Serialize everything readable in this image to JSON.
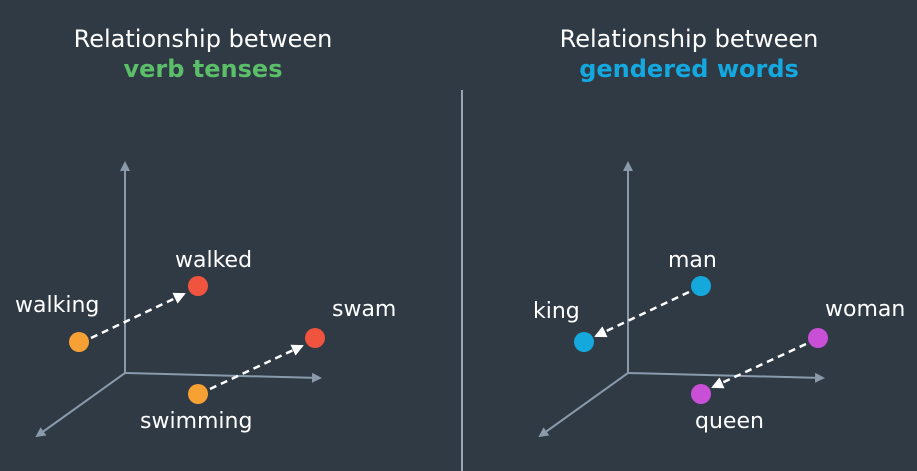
{
  "left_panel": {
    "title_line1": "Relationship between",
    "title_line2": "verb tenses",
    "accent_color": "#5bbf6a",
    "words": {
      "walking": "walking",
      "walked": "walked",
      "swimming": "swimming",
      "swam": "swam"
    }
  },
  "right_panel": {
    "title_line1": "Relationship between",
    "title_line2": "gendered words",
    "accent_color": "#13a9e0",
    "words": {
      "man": "man",
      "king": "king",
      "woman": "woman",
      "queen": "queen"
    }
  },
  "colors": {
    "background": "#2f3a45",
    "axis": "#8a9aab",
    "divider": "#9aa7b4",
    "orange_dot": "#f7a134",
    "red_dot": "#f0533e",
    "blue_dot": "#14a8dd",
    "purple_dot": "#c94fd6",
    "arrow": "#ffffff"
  }
}
